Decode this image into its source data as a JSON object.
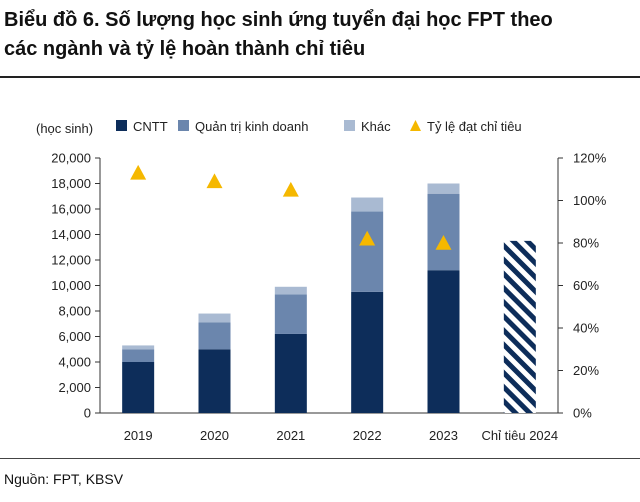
{
  "header": {
    "title_line1": "Biểu đồ 6. Số lượng học sinh ứng tuyển đại học FPT theo",
    "title_line2": "các ngành và tỷ lệ hoàn thành chỉ tiêu"
  },
  "footer": {
    "source": "Nguồn: FPT, KBSV"
  },
  "colors": {
    "cntt": "#0d2d5a",
    "qtkd": "#6b86ad",
    "khac": "#a9bad2",
    "rate": "#f5b800",
    "target": "#0d2d5a"
  },
  "chart_data": {
    "type": "bar",
    "stacked": true,
    "unit_label": "(học sinh)",
    "categories": [
      "2019",
      "2020",
      "2021",
      "2022",
      "2023",
      "Chỉ tiêu 2024"
    ],
    "series": [
      {
        "name": "CNTT",
        "values": [
          4000,
          5000,
          6200,
          9500,
          11200,
          null
        ]
      },
      {
        "name": "Quản trị kinh doanh",
        "values": [
          1000,
          2100,
          3100,
          6300,
          6000,
          null
        ]
      },
      {
        "name": "Khác",
        "values": [
          300,
          700,
          600,
          1100,
          800,
          null
        ]
      }
    ],
    "target": {
      "name": "Chỉ tiêu 2024",
      "value": 13500,
      "pattern": "hatched"
    },
    "secondary_series": {
      "name": "Tỷ lệ đạt chỉ tiêu",
      "axis": "right",
      "marker": "triangle",
      "values": [
        113,
        109,
        105,
        82,
        80
      ]
    },
    "ylim": [
      0,
      20000
    ],
    "yticks": [
      "0",
      "2,000",
      "4,000",
      "6,000",
      "8,000",
      "10,000",
      "12,000",
      "14,000",
      "16,000",
      "18,000",
      "20,000"
    ],
    "y2lim": [
      0,
      120
    ],
    "y2ticks": [
      "0%",
      "20%",
      "40%",
      "60%",
      "80%",
      "100%",
      "120%"
    ],
    "legend": [
      "CNTT",
      "Quản trị kinh doanh",
      "Khác",
      "Tỷ lệ đạt chỉ tiêu"
    ],
    "legend_position": "top",
    "grid": false
  }
}
